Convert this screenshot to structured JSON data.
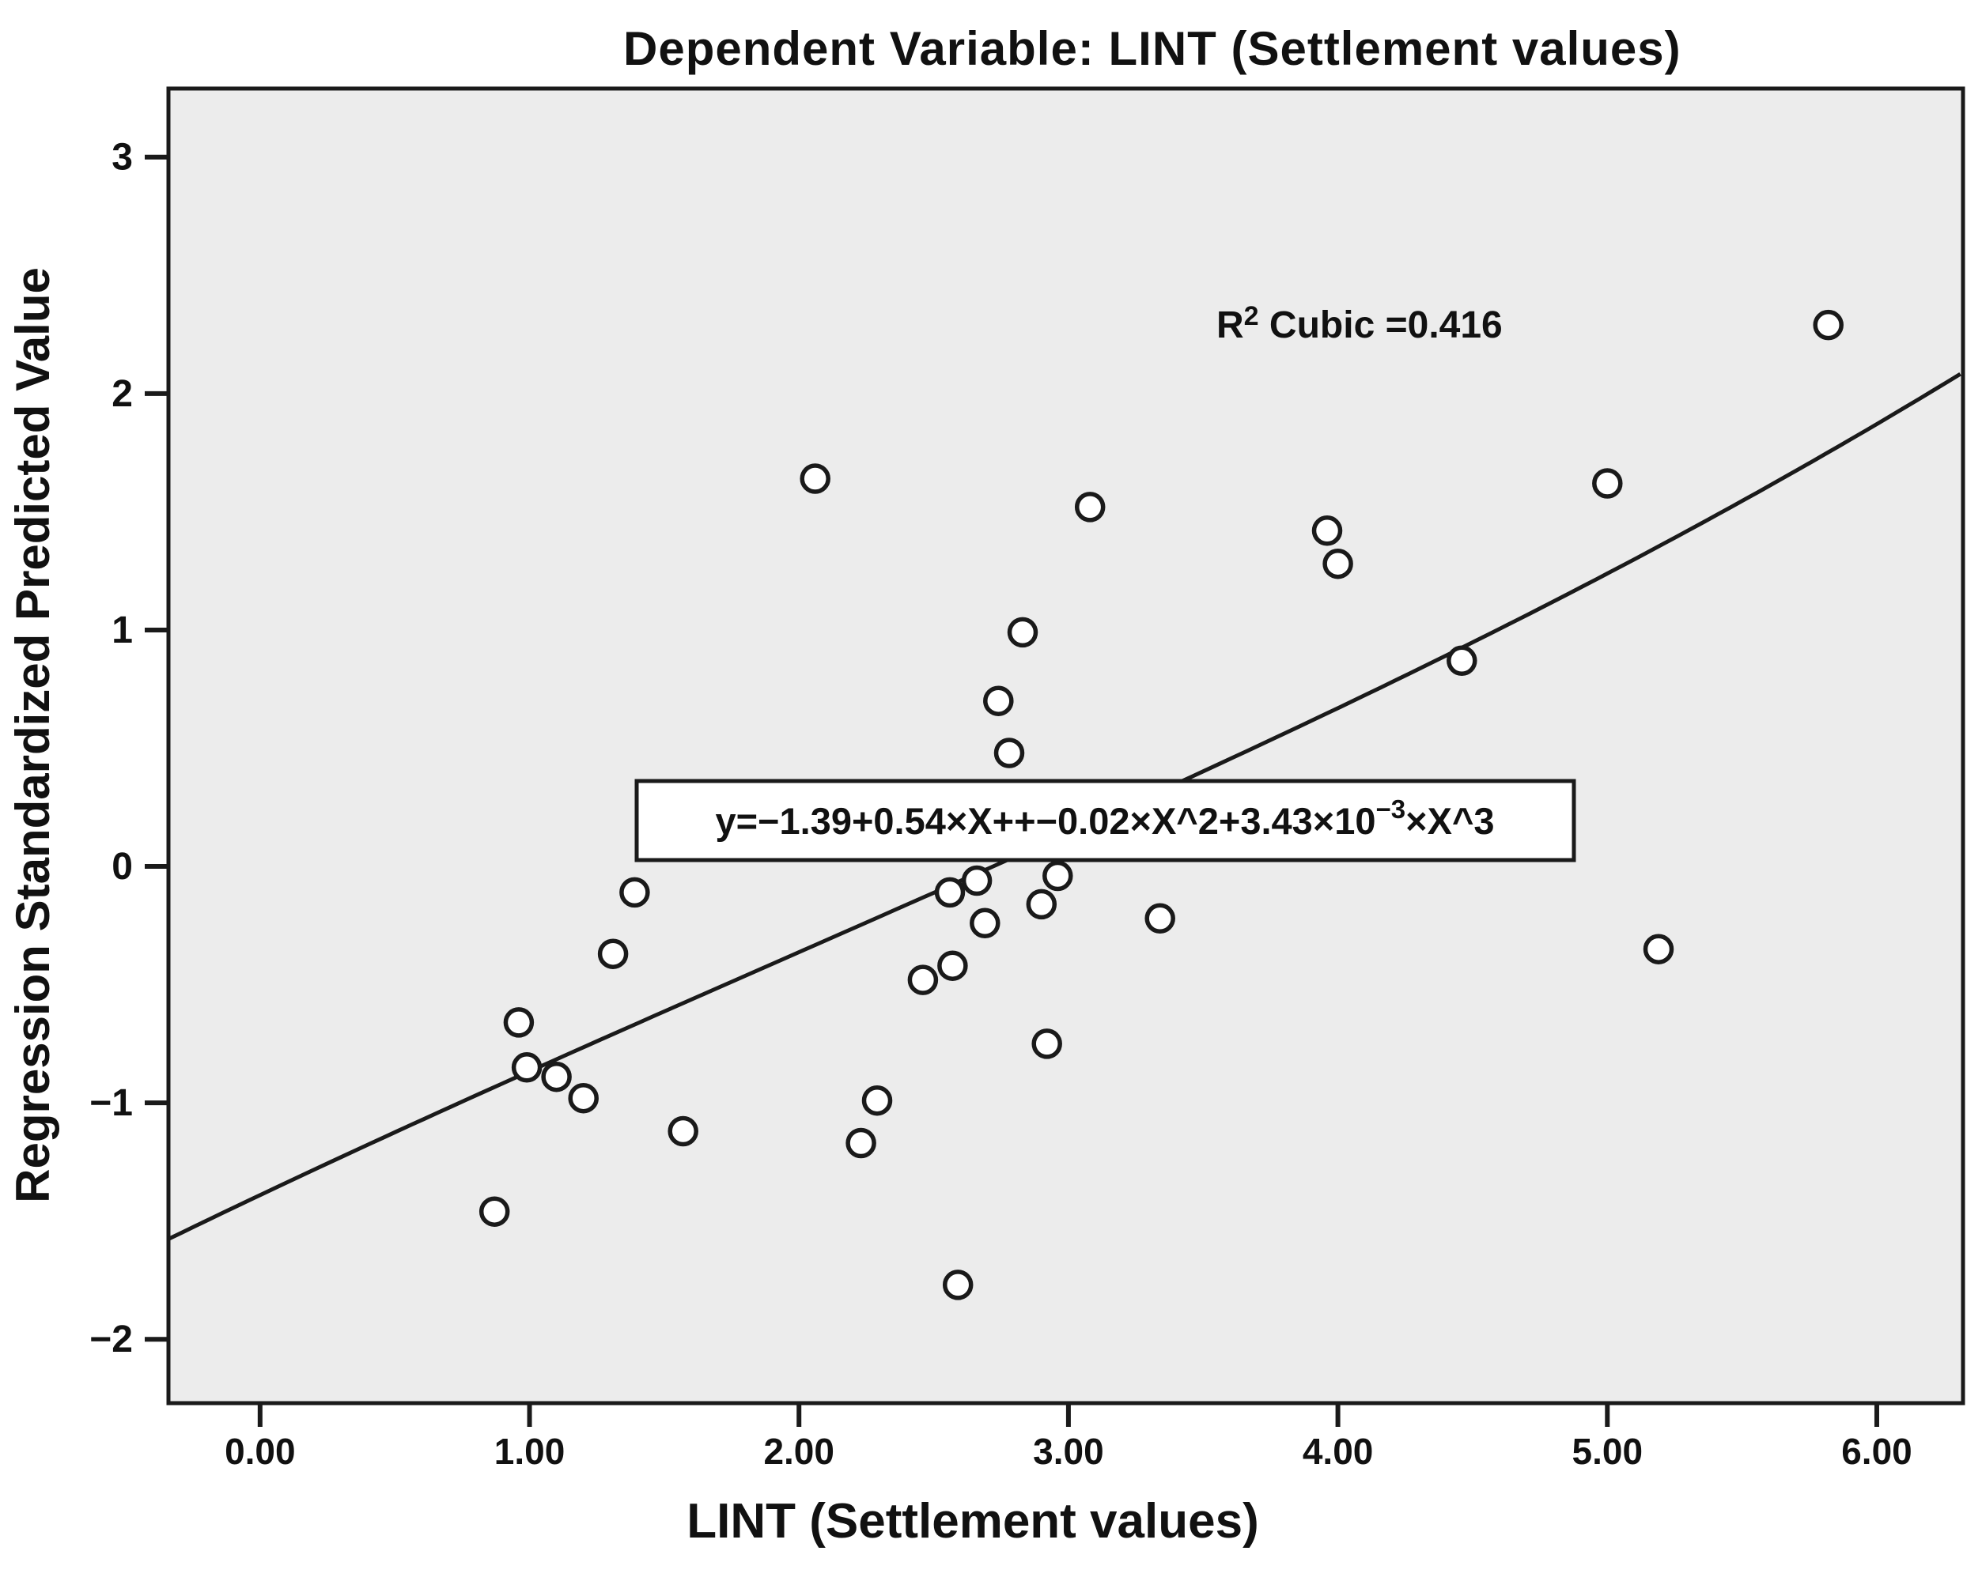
{
  "title": "Dependent Variable: LINT (Settlement values)",
  "annotation": {
    "r_base": "R",
    "r_exponent": "2",
    "r_rest": " Cubic =0.416"
  },
  "equation": {
    "main": "y=−1.39+0.54×X++−0.02×X^2+3.43×10",
    "exponent": "−3",
    "tail": "×X^3"
  },
  "axes": {
    "x": {
      "label": "LINT  (Settlement values)",
      "tick_labels": [
        "0.00",
        "1.00",
        "2.00",
        "3.00",
        "4.00",
        "5.00",
        "6.00"
      ],
      "tick_values": [
        0,
        1,
        2,
        3,
        4,
        5,
        6
      ]
    },
    "y": {
      "label": "Regression Standardized Predicted Value",
      "tick_labels": [
        "3",
        "2",
        "1",
        "0",
        "−1",
        "−2"
      ],
      "tick_values": [
        3,
        2,
        1,
        0,
        -1,
        -2
      ]
    }
  },
  "chart_data": {
    "type": "scatter",
    "title": "Dependent Variable: LINT (Settlement values)",
    "xlabel": "LINT (Settlement values)",
    "ylabel": "Regression Standardized Predicted Value",
    "xlim": [
      -0.34,
      6.32
    ],
    "ylim": [
      -2.27,
      3.29
    ],
    "grid": false,
    "marker": "open-circle",
    "points": [
      [
        5.82,
        2.29
      ],
      [
        5.0,
        1.62
      ],
      [
        3.96,
        1.42
      ],
      [
        4.0,
        1.28
      ],
      [
        4.46,
        0.87
      ],
      [
        2.06,
        1.64
      ],
      [
        3.08,
        1.52
      ],
      [
        2.83,
        0.99
      ],
      [
        2.74,
        0.7
      ],
      [
        2.78,
        0.48
      ],
      [
        2.56,
        -0.11
      ],
      [
        2.66,
        -0.06
      ],
      [
        2.96,
        -0.04
      ],
      [
        2.9,
        -0.16
      ],
      [
        2.69,
        -0.24
      ],
      [
        3.34,
        -0.22
      ],
      [
        2.46,
        -0.48
      ],
      [
        2.57,
        -0.42
      ],
      [
        2.92,
        -0.75
      ],
      [
        0.96,
        -0.66
      ],
      [
        0.99,
        -0.85
      ],
      [
        1.1,
        -0.89
      ],
      [
        1.2,
        -0.98
      ],
      [
        1.57,
        -1.12
      ],
      [
        0.87,
        -1.46
      ],
      [
        2.29,
        -0.99
      ],
      [
        2.23,
        -1.17
      ],
      [
        2.59,
        -1.77
      ],
      [
        5.19,
        -0.35
      ],
      [
        1.39,
        -0.11
      ],
      [
        1.31,
        -0.37
      ]
    ],
    "fit": {
      "type": "cubic",
      "coefficients": [
        -1.39,
        0.54,
        -0.02,
        0.00343
      ],
      "r_squared": 0.416,
      "equation_text": "y=−1.39+0.54×X++−0.02×X^2+3.43×10^−3×X^3"
    }
  },
  "colors": {
    "plot_background": "#ECECEC",
    "frame": "#1a1a1a",
    "marker_stroke": "#1a1a1a",
    "curve": "#1a1a1a",
    "equation_box_fill": "#FFFFFF",
    "text": "#111111"
  }
}
